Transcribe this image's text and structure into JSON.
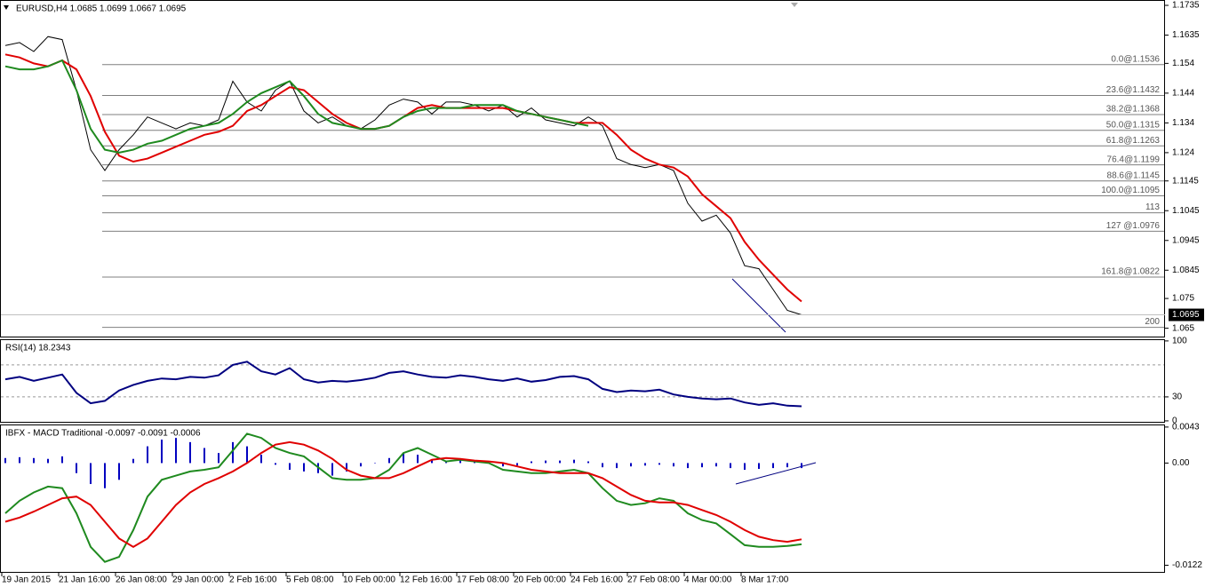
{
  "chart_data": [
    {
      "type": "line",
      "title": "EURUSD,H4  1.0685 1.0699 1.0667 1.0695",
      "ylim": [
        1.0619,
        1.175
      ],
      "yticks": [
        1.1735,
        1.1635,
        1.154,
        1.144,
        1.134,
        1.124,
        1.1145,
        1.1045,
        1.0945,
        1.0845,
        1.075,
        1.065
      ],
      "last_price": 1.0695,
      "last_price_color": "#000000",
      "levels_color": "#7f7f7f",
      "levels": [
        {
          "value": 1.1536,
          "label": "0.0@1.1536"
        },
        {
          "value": 1.1432,
          "label": "23.6@1.1432"
        },
        {
          "value": 1.1368,
          "label": "38.2@1.1368"
        },
        {
          "value": 1.1315,
          "label": "50.0@1.1315"
        },
        {
          "value": 1.1263,
          "label": "61.8@1.1263"
        },
        {
          "value": 1.1199,
          "label": "76.4@1.1199"
        },
        {
          "value": 1.1145,
          "label": "88.6@1.1145"
        },
        {
          "value": 1.1095,
          "label": "100.0@1.1095"
        },
        {
          "value": 1.1038,
          "label": "113"
        },
        {
          "value": 1.0976,
          "label": "127 @1.0976"
        },
        {
          "value": 1.0822,
          "label": "161.8@1.0822"
        },
        {
          "value": 1.0653,
          "label": "200"
        }
      ],
      "series": [
        {
          "color": "#000000",
          "values": [
            1.16,
            1.161,
            1.158,
            1.163,
            1.162,
            1.145,
            1.125,
            1.118,
            1.125,
            1.13,
            1.136,
            1.134,
            1.132,
            1.134,
            1.133,
            1.135,
            1.148,
            1.141,
            1.138,
            1.145,
            1.148,
            1.138,
            1.134,
            1.136,
            1.133,
            1.132,
            1.135,
            1.14,
            1.142,
            1.141,
            1.137,
            1.141,
            1.141,
            1.14,
            1.138,
            1.14,
            1.136,
            1.139,
            1.135,
            1.134,
            1.133,
            1.136,
            1.133,
            1.122,
            1.12,
            1.119,
            1.12,
            1.118,
            1.107,
            1.101,
            1.103,
            1.097,
            1.086,
            1.085,
            1.078,
            1.071,
            1.0695
          ]
        },
        {
          "color": "#e00000",
          "values": [
            1.157,
            1.156,
            1.154,
            1.153,
            1.155,
            1.152,
            1.143,
            1.131,
            1.123,
            1.121,
            1.122,
            1.124,
            1.126,
            1.128,
            1.13,
            1.131,
            1.133,
            1.138,
            1.14,
            1.143,
            1.146,
            1.145,
            1.141,
            1.137,
            1.134,
            1.132,
            1.132,
            1.133,
            1.136,
            1.139,
            1.14,
            1.139,
            1.139,
            1.139,
            1.139,
            1.139,
            1.138,
            1.137,
            1.136,
            1.135,
            1.134,
            1.134,
            1.134,
            1.13,
            1.125,
            1.122,
            1.12,
            1.119,
            1.116,
            1.11,
            1.106,
            1.102,
            1.094,
            1.088,
            1.083,
            1.078,
            1.074
          ]
        },
        {
          "color": "#1f8a1f",
          "values": [
            1.153,
            1.152,
            1.152,
            1.153,
            1.155,
            1.145,
            1.132,
            1.125,
            1.124,
            1.125,
            1.127,
            1.128,
            1.13,
            1.132,
            1.133,
            1.134,
            1.137,
            1.141,
            1.144,
            1.146,
            1.148,
            1.143,
            1.137,
            1.134,
            1.133,
            1.132,
            1.132,
            1.133,
            1.136,
            1.138,
            1.139,
            1.139,
            1.139,
            1.14,
            1.14,
            1.14,
            1.138,
            1.137,
            1.136,
            1.135,
            1.134,
            1.133,
            null,
            null,
            null,
            null,
            null,
            null,
            null,
            null,
            null,
            null,
            null,
            null,
            null,
            null,
            null
          ]
        }
      ]
    },
    {
      "type": "line",
      "title": "RSI(14) 18.2343",
      "ylim": [
        -2.3,
        101
      ],
      "yticks": [
        100,
        30,
        0
      ],
      "levels": [
        70,
        30
      ],
      "levels_color": "#999999",
      "series": [
        {
          "color": "#000080",
          "values": [
            52,
            55,
            50,
            54,
            58,
            35,
            22,
            25,
            38,
            45,
            50,
            53,
            52,
            55,
            54,
            57,
            70,
            74,
            62,
            58,
            66,
            52,
            48,
            50,
            49,
            51,
            54,
            60,
            62,
            58,
            55,
            54,
            57,
            55,
            52,
            50,
            53,
            49,
            51,
            55,
            56,
            52,
            40,
            36,
            38,
            37,
            39,
            33,
            30,
            28,
            27,
            28,
            23,
            20,
            22,
            19,
            18.2343
          ]
        }
      ]
    },
    {
      "type": "line",
      "title": "IBFX - MACD Traditional -0.0097 -0.0091 -0.0006",
      "ylim": [
        -0.0131,
        0.0045
      ],
      "yticks": [
        0.0043,
        {
          "value": 0,
          "label": "0.00"
        },
        -0.0122
      ],
      "categories": [
        "19 Jan 2015",
        null,
        null,
        null,
        "21 Jan 16:00",
        null,
        null,
        null,
        "26 Jan 08:00",
        null,
        null,
        null,
        "29 Jan 00:00",
        null,
        null,
        null,
        "2 Feb 16:00",
        null,
        null,
        null,
        "5 Feb 08:00",
        null,
        null,
        null,
        "10 Feb 00:00",
        null,
        null,
        null,
        "12 Feb 16:00",
        null,
        null,
        null,
        "17 Feb 08:00",
        null,
        null,
        null,
        "20 Feb 00:00",
        null,
        null,
        null,
        "24 Feb 16:00",
        null,
        null,
        null,
        "27 Feb 08:00",
        null,
        null,
        null,
        "4 Mar 00:00",
        null,
        null,
        null,
        "8 Mar 17:00",
        null,
        null,
        null,
        null
      ],
      "histogram": {
        "color": "#0000c0",
        "values": [
          0.0006,
          0.0007,
          0.0006,
          0.0005,
          0.0008,
          -0.0012,
          -0.0025,
          -0.003,
          -0.002,
          0.0005,
          0.002,
          0.0028,
          0.003,
          0.0025,
          0.0018,
          0.0012,
          0.0025,
          0.002,
          0.001,
          -0.0002,
          -0.0008,
          -0.001,
          -0.0012,
          -0.0015,
          -0.001,
          -0.0004,
          0,
          0.0006,
          0.0012,
          0.001,
          0.0004,
          0.0002,
          0.0004,
          0.0003,
          0,
          -0.0004,
          -0.0003,
          0.0002,
          0.0003,
          0.0003,
          0.0004,
          0.0002,
          -0.0005,
          -0.0006,
          -0.0004,
          -0.0003,
          -0.0002,
          -0.0004,
          -0.0006,
          -0.0005,
          -0.0004,
          -0.0006,
          -0.0008,
          -0.0007,
          -0.0006,
          -0.0005,
          -0.0006
        ]
      },
      "series": [
        {
          "color": "#1f8a1f",
          "values": [
            -0.006,
            -0.0045,
            -0.0035,
            -0.0028,
            -0.003,
            -0.006,
            -0.01,
            -0.0118,
            -0.0112,
            -0.008,
            -0.004,
            -0.002,
            -0.0015,
            -0.001,
            -0.0008,
            -0.0005,
            0.0015,
            0.0035,
            0.003,
            0.0018,
            0.0012,
            0.0008,
            -0.0005,
            -0.0018,
            -0.002,
            -0.002,
            -0.0018,
            -0.0008,
            0.0012,
            0.0018,
            0.001,
            0.0002,
            0.0004,
            0.0002,
            0,
            -0.0008,
            -0.001,
            -0.0012,
            -0.0012,
            -0.001,
            -0.0008,
            -0.0012,
            -0.003,
            -0.0045,
            -0.005,
            -0.0048,
            -0.0042,
            -0.0045,
            -0.006,
            -0.0068,
            -0.0072,
            -0.0085,
            -0.0098,
            -0.01,
            -0.01,
            -0.0099,
            -0.0097
          ]
        },
        {
          "color": "#e00000",
          "values": [
            -0.007,
            -0.0065,
            -0.0058,
            -0.005,
            -0.0042,
            -0.004,
            -0.005,
            -0.007,
            -0.009,
            -0.01,
            -0.009,
            -0.007,
            -0.005,
            -0.0035,
            -0.0025,
            -0.0018,
            -0.001,
            0,
            0.0012,
            0.0022,
            0.0025,
            0.0022,
            0.0015,
            0.0005,
            -0.0008,
            -0.0015,
            -0.0018,
            -0.0018,
            -0.0012,
            -0.0004,
            0.0004,
            0.0006,
            0.0005,
            0.0003,
            0.0002,
            0,
            -0.0004,
            -0.0008,
            -0.001,
            -0.0012,
            -0.0012,
            -0.0012,
            -0.0018,
            -0.0028,
            -0.0038,
            -0.0045,
            -0.0047,
            -0.0047,
            -0.005,
            -0.0056,
            -0.0062,
            -0.007,
            -0.008,
            -0.0088,
            -0.0092,
            -0.0094,
            -0.0091
          ]
        }
      ]
    }
  ]
}
